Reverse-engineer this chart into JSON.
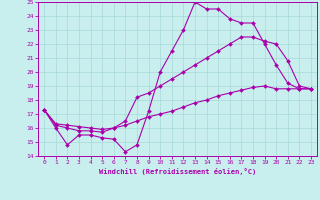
{
  "xlabel": "Windchill (Refroidissement éolien,°C)",
  "xlim": [
    -0.5,
    23.5
  ],
  "ylim": [
    14,
    25
  ],
  "xticks": [
    0,
    1,
    2,
    3,
    4,
    5,
    6,
    7,
    8,
    9,
    10,
    11,
    12,
    13,
    14,
    15,
    16,
    17,
    18,
    19,
    20,
    21,
    22,
    23
  ],
  "yticks": [
    14,
    15,
    16,
    17,
    18,
    19,
    20,
    21,
    22,
    23,
    24,
    25
  ],
  "background_color": "#c8eeee",
  "grid_color": "#a8d8d8",
  "line_color": "#aa00aa",
  "curve1_x": [
    0,
    1,
    2,
    3,
    4,
    5,
    6,
    7,
    8,
    9,
    10,
    11,
    12,
    13,
    14,
    15,
    16,
    17,
    18,
    19,
    20,
    21,
    22,
    23
  ],
  "curve1_y": [
    17.3,
    16.0,
    14.8,
    15.5,
    15.5,
    15.3,
    15.2,
    14.3,
    14.8,
    17.2,
    20.0,
    21.5,
    23.0,
    25.0,
    24.5,
    24.5,
    23.8,
    23.5,
    23.5,
    22.0,
    20.5,
    19.2,
    18.8,
    18.8
  ],
  "curve2_x": [
    0,
    1,
    2,
    3,
    4,
    5,
    6,
    7,
    8,
    9,
    10,
    11,
    12,
    13,
    14,
    15,
    16,
    17,
    18,
    19,
    20,
    21,
    22,
    23
  ],
  "curve2_y": [
    17.3,
    16.2,
    16.0,
    15.8,
    15.8,
    15.7,
    16.0,
    16.5,
    18.2,
    18.5,
    19.0,
    19.5,
    20.0,
    20.5,
    21.0,
    21.5,
    22.0,
    22.5,
    22.5,
    22.2,
    22.0,
    20.8,
    19.0,
    18.8
  ],
  "curve3_x": [
    0,
    1,
    2,
    3,
    4,
    5,
    6,
    7,
    8,
    9,
    10,
    11,
    12,
    13,
    14,
    15,
    16,
    17,
    18,
    19,
    20,
    21,
    22,
    23
  ],
  "curve3_y": [
    17.3,
    16.3,
    16.2,
    16.1,
    16.0,
    15.9,
    16.0,
    16.2,
    16.5,
    16.8,
    17.0,
    17.2,
    17.5,
    17.8,
    18.0,
    18.3,
    18.5,
    18.7,
    18.9,
    19.0,
    18.8,
    18.8,
    18.8,
    18.8
  ]
}
